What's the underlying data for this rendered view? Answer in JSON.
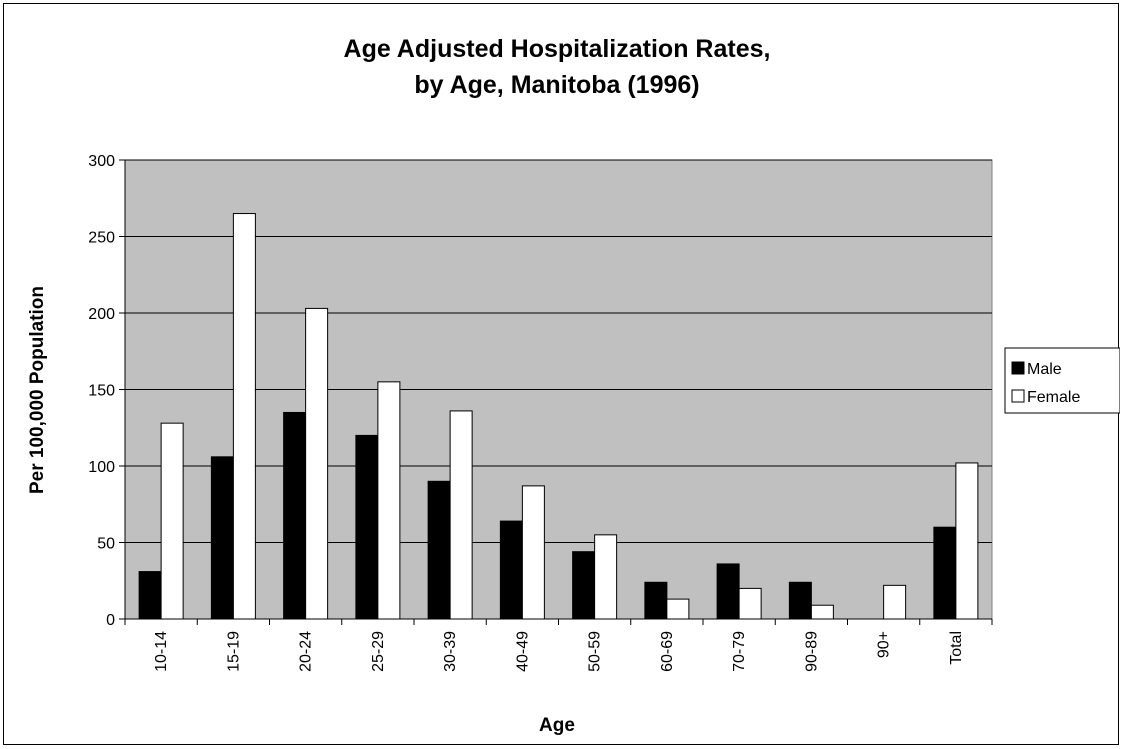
{
  "chart_data": {
    "type": "bar",
    "title_lines": [
      "Age Adjusted Hospitalization Rates,",
      "by Age, Manitoba (1996)"
    ],
    "xlabel": "Age",
    "ylabel": "Per 100,000 Population",
    "categories": [
      "10-14",
      "15-19",
      "20-24",
      "25-29",
      "30-39",
      "40-49",
      "50-59",
      "60-69",
      "70-79",
      "90-89",
      "90+",
      "Total"
    ],
    "series": [
      {
        "name": "Male",
        "color": "#000000",
        "values": [
          31,
          106,
          135,
          120,
          90,
          64,
          44,
          24,
          36,
          24,
          0,
          60
        ]
      },
      {
        "name": "Female",
        "color": "#ffffff",
        "values": [
          128,
          265,
          203,
          155,
          136,
          87,
          55,
          13,
          20,
          9,
          22,
          102
        ]
      }
    ],
    "ylim": [
      0,
      300
    ],
    "yticks": [
      0,
      50,
      100,
      150,
      200,
      250,
      300
    ],
    "grid": true,
    "plot_background": "#c0c0c0",
    "legend_position": "right"
  }
}
